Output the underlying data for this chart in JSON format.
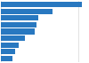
{
  "values": [
    209,
    134,
    97,
    93,
    88,
    63,
    47,
    37,
    30
  ],
  "bar_color": "#2878c0",
  "background_color": "#ffffff",
  "grid_color": "#cccccc",
  "figsize": [
    1.0,
    0.71
  ],
  "dpi": 100
}
